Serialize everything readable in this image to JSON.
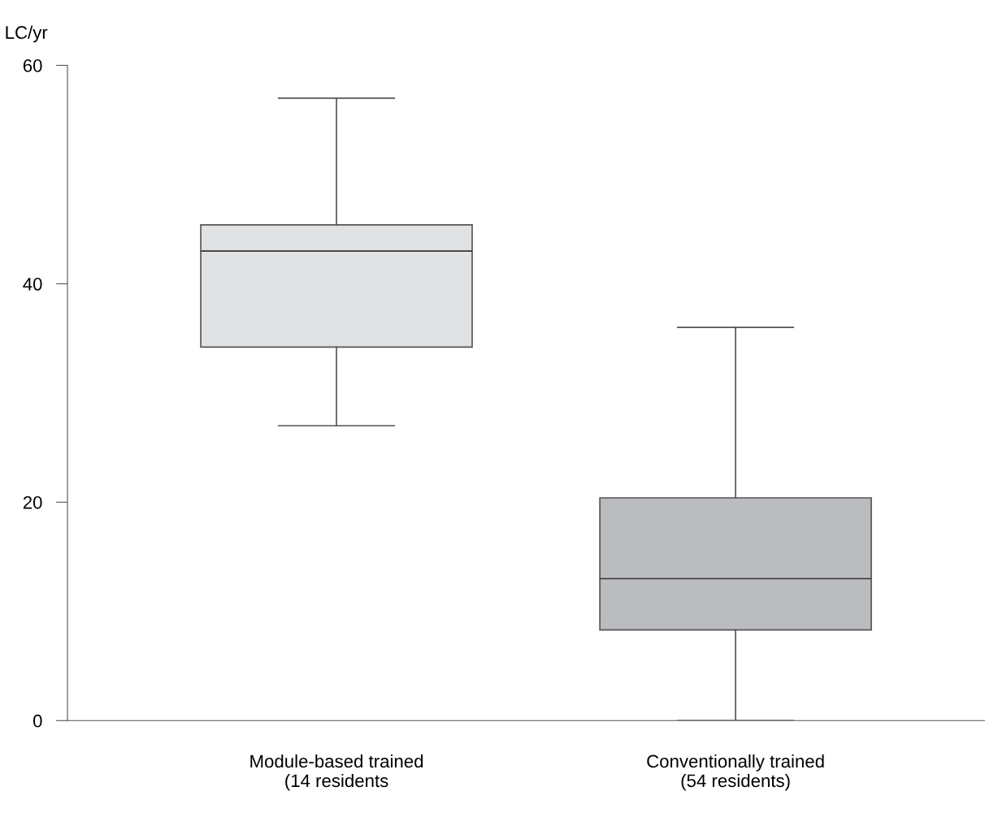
{
  "chart_data": {
    "type": "box",
    "ylabel": "LC/yr",
    "categories": [
      "Module-based trained\n(14 residents",
      "Conventionally trained\n(54 residents)"
    ],
    "boxes": [
      {
        "low": 27,
        "q1": 34.2,
        "median": 43,
        "q3": 45.4,
        "high": 57
      },
      {
        "low": 0,
        "q1": 8.3,
        "median": 13,
        "q3": 20.4,
        "high": 36
      }
    ],
    "colors": [
      "#e1e2e4",
      "#bbbcbf"
    ],
    "ylim": [
      0,
      60
    ],
    "yticks": [
      0,
      20,
      40,
      60
    ],
    "grid": false
  }
}
